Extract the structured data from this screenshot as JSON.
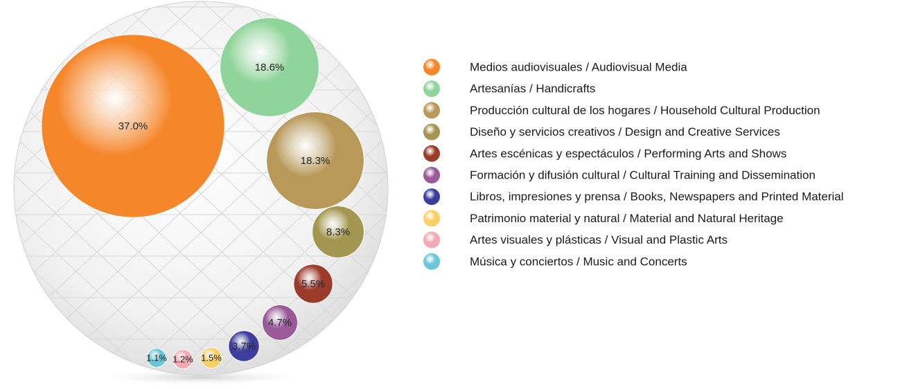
{
  "chart_data": {
    "type": "bubble",
    "categories": [
      "Medios audiovisuales / Audiovisual Media",
      "Artesanías / Handicrafts",
      "Producción cultural de los hogares / Household Cultural Production",
      "Diseño y servicios creativos / Design and Creative Services",
      "Artes escénicas y espectáculos / Performing Arts and Shows",
      "Formación y difusión cultural / Cultural Training and Dissemination",
      "Libros, impresiones y prensa / Books, Newspapers and Printed Material",
      "Patrimonio material y natural / Material and Natural Heritage",
      "Artes visuales y plásticas / Visual and Plastic Arts",
      "Música y conciertos / Music and Concerts"
    ],
    "values": [
      37.0,
      18.6,
      18.3,
      8.3,
      5.5,
      4.7,
      3.7,
      1.5,
      1.2,
      1.1
    ],
    "value_labels": [
      "37.0%",
      "18.6%",
      "18.3%",
      "8.3%",
      "5.5%",
      "4.7%",
      "3.7%",
      "1.5%",
      "1.2%",
      "1.1%"
    ],
    "colors": [
      "#f5862a",
      "#8fd49a",
      "#b8995a",
      "#a39650",
      "#9b3b2b",
      "#9a5a9a",
      "#3d3d9e",
      "#f9cf6a",
      "#f2a9b2",
      "#6cc6d9"
    ]
  }
}
